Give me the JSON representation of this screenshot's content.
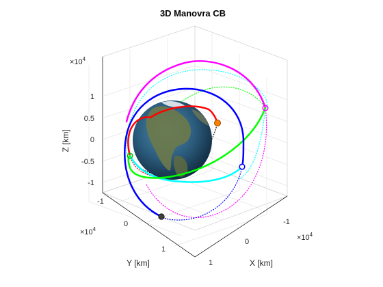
{
  "chart_data": {
    "type": "line",
    "title": "3D Manovra CB",
    "view": "3d",
    "grid": true,
    "xlabel": "X [km]",
    "ylabel": "Y [km]",
    "zlabel": "Z [km]",
    "multiplier_base": "×10",
    "multiplier_exp": "4",
    "xticks": [
      "-1",
      "0",
      "1"
    ],
    "yticks": [
      "-1",
      "0",
      "1"
    ],
    "zticks": [
      "-1",
      "-0.5",
      "0",
      "0.5",
      "1"
    ],
    "xlim": [
      -10000,
      10000
    ],
    "ylim": [
      -10000,
      15000
    ],
    "zlim": [
      -12000,
      13000
    ],
    "background_object": "earth",
    "series": [
      {
        "color": "#ff0000",
        "style": "solid"
      },
      {
        "color": "#ff0000",
        "style": "dotted"
      },
      {
        "color": "#0000ff",
        "style": "solid"
      },
      {
        "color": "#0000ff",
        "style": "dotted"
      },
      {
        "color": "#00ff00",
        "style": "solid"
      },
      {
        "color": "#00ff00",
        "style": "dotted"
      },
      {
        "color": "#00ffff",
        "style": "solid"
      },
      {
        "color": "#00ffff",
        "style": "dotted"
      },
      {
        "color": "#ff00ff",
        "style": "solid"
      },
      {
        "color": "#ff00ff",
        "style": "dotted"
      },
      {
        "color": "#000000",
        "style": "dotted"
      }
    ],
    "markers": [
      {
        "color": "#ff8000",
        "fill": true
      },
      {
        "color": "#404040",
        "fill": true
      },
      {
        "color": "#0000ff",
        "fill": false
      },
      {
        "color": "#00ff00",
        "fill": false
      },
      {
        "color": "#ff00ff",
        "fill": false
      }
    ]
  }
}
